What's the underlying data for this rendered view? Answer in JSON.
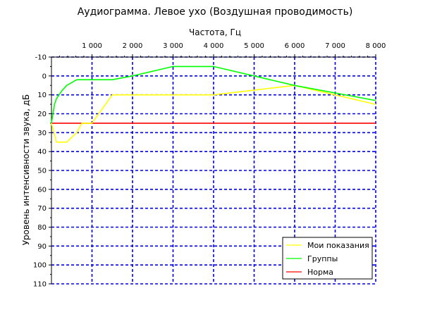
{
  "chart_data": {
    "type": "line",
    "title": "Аудиограмма. Левое ухо (Воздушная проводимость)",
    "xlabel": "Частота, Гц",
    "ylabel": "Уровень интенсивности звука, дБ",
    "xlim": [
      0,
      8000
    ],
    "ylim": [
      -10,
      110
    ],
    "y_inverted": true,
    "x_axis_position": "top",
    "x_ticks": [
      1000,
      2000,
      3000,
      4000,
      5000,
      6000,
      7000,
      8000
    ],
    "x_tick_labels": [
      "1 000",
      "2 000",
      "3 000",
      "4 000",
      "5 000",
      "6 000",
      "7 000",
      "8 000"
    ],
    "y_ticks": [
      -10,
      0,
      10,
      20,
      30,
      40,
      50,
      60,
      70,
      80,
      90,
      100,
      110
    ],
    "y_tick_labels": [
      "-10",
      "0",
      "10",
      "20",
      "30",
      "40",
      "50",
      "60",
      "70",
      "80",
      "90",
      "100",
      "110"
    ],
    "grid": true,
    "legend_position": "bottom-right",
    "series": [
      {
        "name": "Мои показания",
        "color": "#ffff00",
        "x": [
          0,
          125,
          375,
          625,
          750,
          1000,
          1500,
          4000,
          6000,
          8000
        ],
        "y": [
          25,
          35,
          35,
          30,
          25,
          25,
          10,
          10,
          5,
          15
        ]
      },
      {
        "name": "Группы",
        "color": "#00ff00",
        "x": [
          0,
          75,
          125,
          250,
          375,
          625,
          1000,
          1500,
          2000,
          3000,
          4000,
          6000,
          8000
        ],
        "y": [
          25,
          15,
          12,
          8,
          5,
          2,
          2,
          2,
          0,
          -5,
          -5,
          5,
          13
        ]
      },
      {
        "name": "Норма",
        "color": "#ff0000",
        "x": [
          0,
          8000
        ],
        "y": [
          25,
          25
        ]
      }
    ]
  }
}
